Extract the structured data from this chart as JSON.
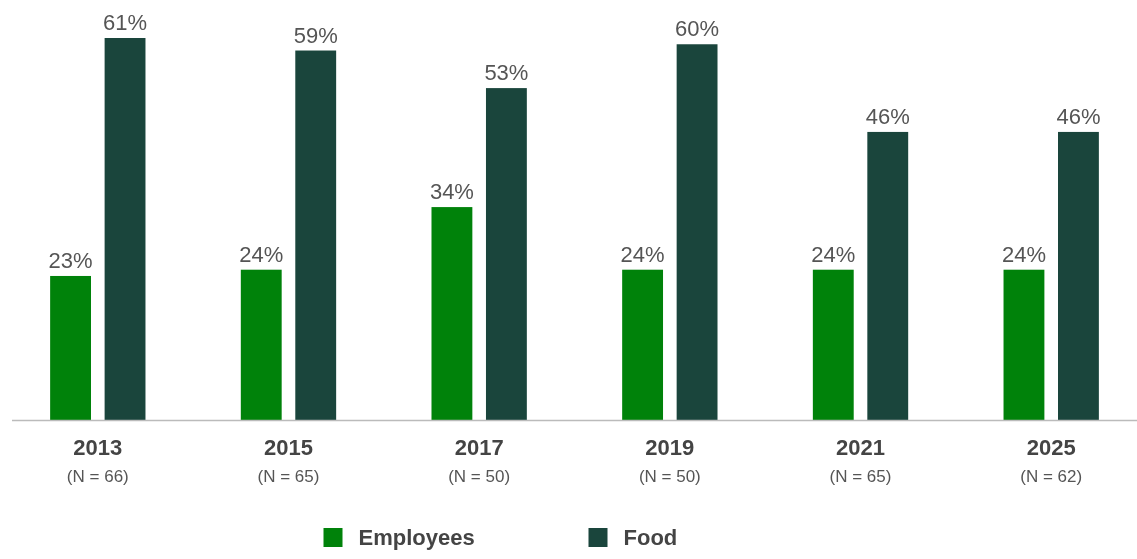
{
  "chart_data": {
    "type": "bar",
    "categories": [
      "2013\n(N = 66)",
      "2015\n(N = 65)",
      "2017\n(N = 50)",
      "2019\n(N = 50)",
      "2021\n(N = 65)",
      "2025\n(N = 62)"
    ],
    "series": [
      {
        "name": "Employees",
        "color": "#00820a",
        "values": [
          23,
          24,
          34,
          24,
          24,
          24
        ],
        "value_labels": [
          "23%",
          "24%",
          "34%",
          "24%",
          "24%",
          "24%"
        ]
      },
      {
        "name": "Food",
        "color": "#1a453c",
        "values": [
          61,
          59,
          53,
          60,
          46,
          46
        ],
        "value_labels": [
          "61%",
          "59%",
          "53%",
          "60%",
          "46%",
          "46%"
        ]
      }
    ],
    "legend": "bottom"
  }
}
